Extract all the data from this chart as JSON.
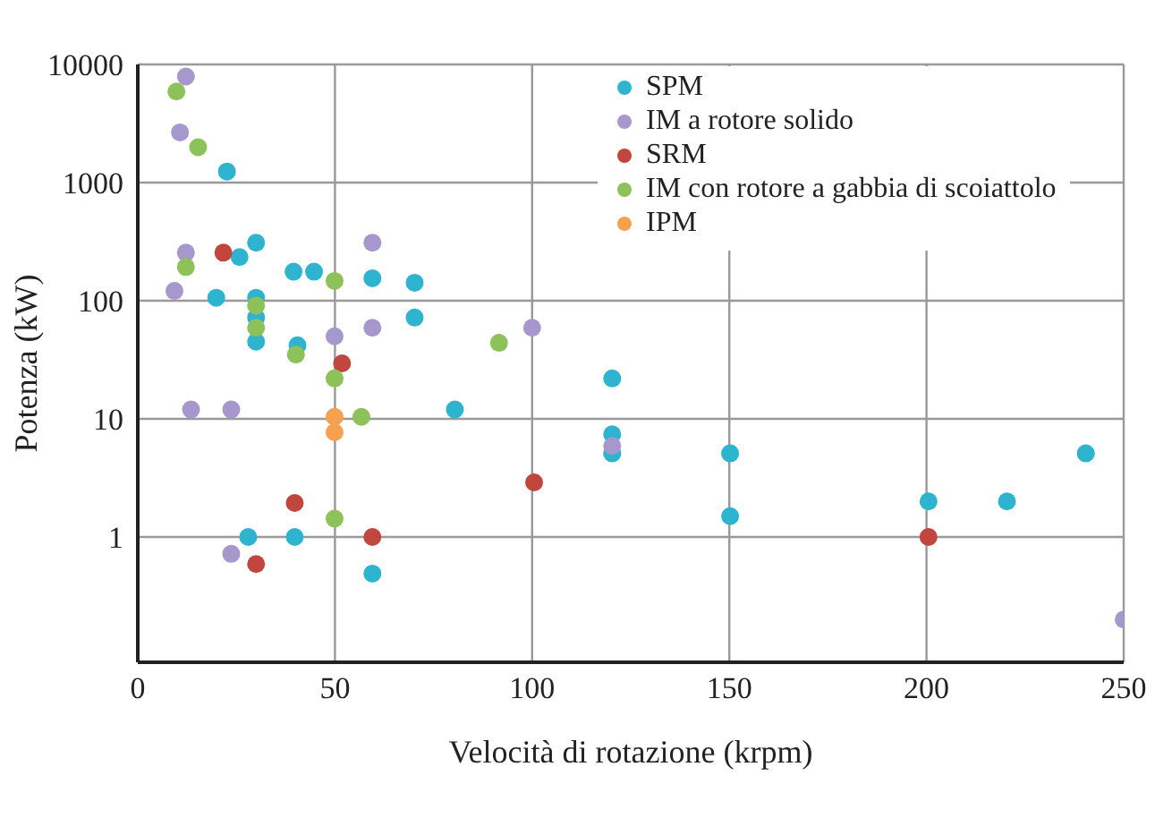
{
  "chart_data": {
    "type": "scatter",
    "xlabel": "Velocità di rotazione (krpm)",
    "ylabel": "Potenza (kW)",
    "xlim": [
      0,
      250
    ],
    "xticks": [
      0,
      50,
      100,
      150,
      200,
      250
    ],
    "ylim": [
      0.087,
      10000
    ],
    "yticks": [
      1,
      10,
      100,
      1000,
      10000
    ],
    "log": "y",
    "grid": true,
    "legend": "top right",
    "marker": "circle",
    "series": [
      {
        "name": "SPM",
        "color": "#2fb4cf",
        "x": [
          22.6,
          25.8,
          19.9,
          30,
          30,
          30,
          30,
          39.5,
          44.7,
          59.5,
          70.2,
          70.2,
          40.5,
          80.4,
          28,
          39.8,
          59.5,
          120.3,
          120.3,
          120.3,
          150.2,
          150.2,
          200.5,
          220.4,
          240.4
        ],
        "values": [
          1240,
          234,
          106,
          310,
          106,
          72,
          45,
          176,
          176,
          155,
          142,
          72,
          42,
          12,
          1,
          1,
          0.49,
          22,
          7.4,
          5.1,
          5.1,
          1.5,
          2,
          2,
          5.1
        ]
      },
      {
        "name": "IM a rotore solido",
        "color": "#a697cc",
        "x": [
          12.2,
          10.7,
          12.2,
          9.3,
          59.5,
          49.9,
          59.5,
          100,
          13.5,
          23.7,
          23.7,
          120.3,
          250
        ],
        "values": [
          7900,
          2660,
          255,
          121,
          310,
          50,
          59,
          59,
          12,
          12,
          0.72,
          5.9,
          0.2
        ]
      },
      {
        "name": "SRM",
        "color": "#c0463e",
        "x": [
          21.7,
          51.8,
          39.8,
          59.5,
          30,
          100.5,
          200.5
        ],
        "values": [
          255,
          29.5,
          1.94,
          1,
          0.59,
          2.9,
          1
        ]
      },
      {
        "name": "IM con rotore a gabbia di scoiattolo",
        "color": "#8dc15a",
        "x": [
          9.8,
          15.3,
          12.2,
          49.9,
          30,
          30,
          40.1,
          91.6,
          49.9,
          56.7,
          49.9
        ],
        "values": [
          5900,
          1990,
          193,
          147,
          91,
          59,
          35,
          44,
          22,
          10.4,
          1.43
        ]
      },
      {
        "name": "IPM",
        "color": "#f7a050",
        "x": [
          49.9,
          49.9
        ],
        "values": [
          10.4,
          7.7
        ]
      }
    ]
  }
}
